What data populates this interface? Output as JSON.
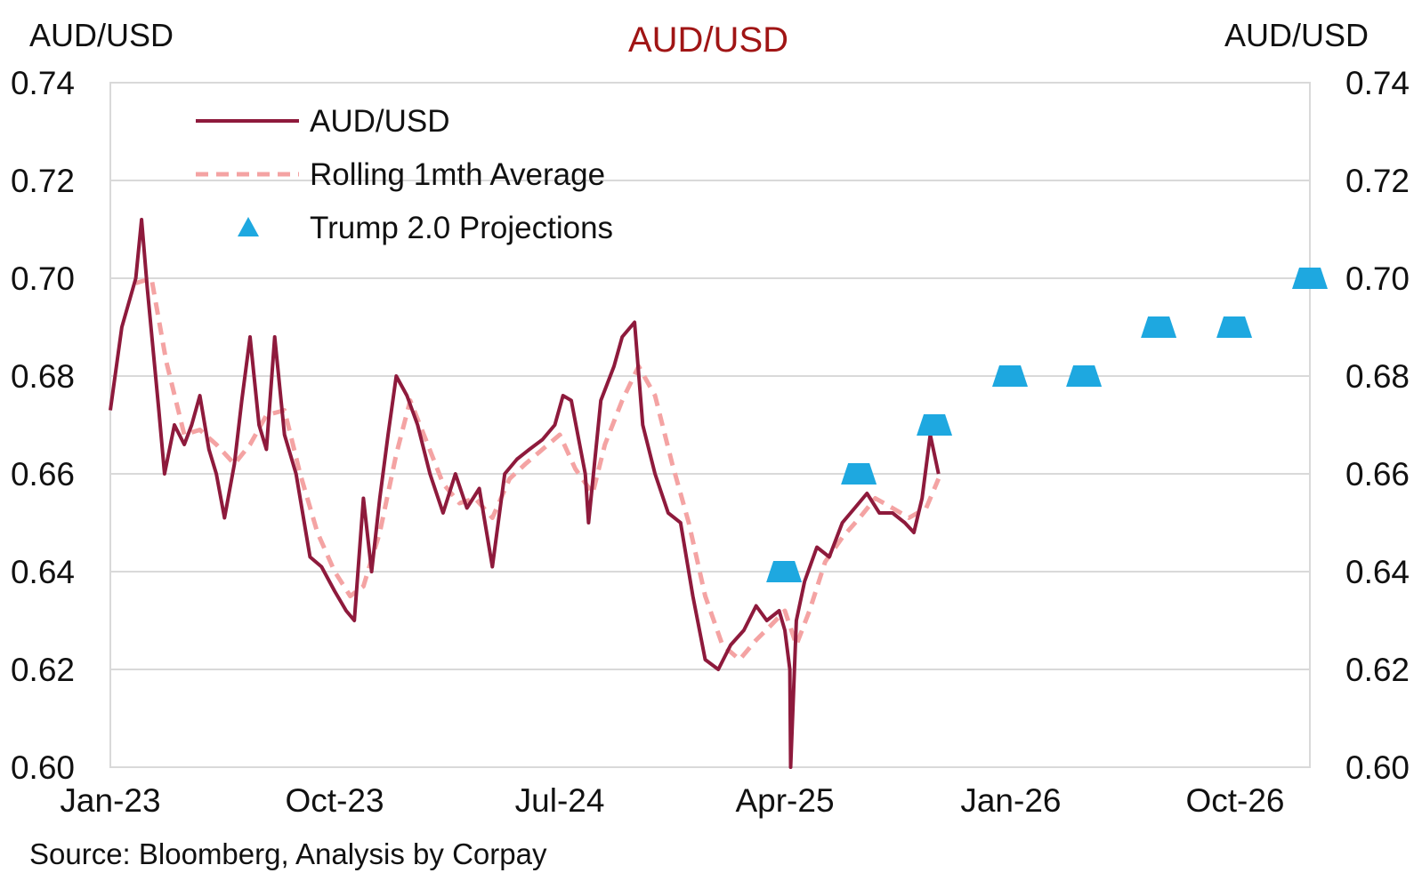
{
  "chart_data": {
    "type": "line",
    "title": "AUD/USD",
    "left_axis_label": "AUD/USD",
    "right_axis_label": "AUD/USD",
    "source": "Source: Bloomberg, Analysis by Corpay",
    "ylim": [
      0.6,
      0.74
    ],
    "y_ticks": [
      "0.74",
      "0.72",
      "0.70",
      "0.68",
      "0.66",
      "0.64",
      "0.62",
      "0.60"
    ],
    "x_ticks": [
      "Jan-23",
      "Oct-23",
      "Jul-24",
      "Apr-25",
      "Jan-26",
      "Oct-26"
    ],
    "x_range": [
      "2023-01",
      "2026-12"
    ],
    "grid": true,
    "legend_position": "top-left",
    "colors": {
      "audusd": "#8e1a3c",
      "rolling": "#f4a3a3",
      "projection": "#1ea8e0",
      "grid": "#d9d9d9",
      "title": "#a01515"
    },
    "series": [
      {
        "name": "AUD/USD",
        "style": "solid",
        "x": [
          "2023-01-01",
          "2023-01-15",
          "2023-02-01",
          "2023-02-08",
          "2023-02-15",
          "2023-03-01",
          "2023-03-08",
          "2023-03-20",
          "2023-04-01",
          "2023-04-10",
          "2023-04-20",
          "2023-05-01",
          "2023-05-10",
          "2023-05-20",
          "2023-06-01",
          "2023-06-10",
          "2023-06-20",
          "2023-07-01",
          "2023-07-10",
          "2023-07-20",
          "2023-08-01",
          "2023-08-15",
          "2023-09-01",
          "2023-09-15",
          "2023-10-01",
          "2023-10-15",
          "2023-10-25",
          "2023-11-05",
          "2023-11-15",
          "2023-11-25",
          "2023-12-05",
          "2023-12-15",
          "2023-12-28",
          "2024-01-10",
          "2024-01-25",
          "2024-02-10",
          "2024-02-25",
          "2024-03-10",
          "2024-03-25",
          "2024-04-10",
          "2024-04-25",
          "2024-05-10",
          "2024-05-25",
          "2024-06-10",
          "2024-06-25",
          "2024-07-05",
          "2024-07-15",
          "2024-08-01",
          "2024-08-05",
          "2024-08-20",
          "2024-09-05",
          "2024-09-15",
          "2024-09-30",
          "2024-10-10",
          "2024-10-25",
          "2024-11-10",
          "2024-11-25",
          "2024-12-10",
          "2024-12-25",
          "2025-01-10",
          "2025-01-25",
          "2025-02-10",
          "2025-02-25",
          "2025-03-10",
          "2025-03-25",
          "2025-04-01",
          "2025-04-07",
          "2025-04-08",
          "2025-04-15",
          "2025-04-25",
          "2025-05-10",
          "2025-05-25",
          "2025-06-10",
          "2025-06-25",
          "2025-07-10",
          "2025-07-25",
          "2025-08-10",
          "2025-08-25",
          "2025-09-05",
          "2025-09-15",
          "2025-09-25",
          "2025-10-05"
        ],
        "values": [
          0.673,
          0.69,
          0.7,
          0.712,
          0.698,
          0.673,
          0.66,
          0.67,
          0.666,
          0.67,
          0.676,
          0.665,
          0.66,
          0.651,
          0.662,
          0.675,
          0.688,
          0.67,
          0.665,
          0.688,
          0.668,
          0.66,
          0.643,
          0.641,
          0.636,
          0.632,
          0.63,
          0.655,
          0.64,
          0.655,
          0.668,
          0.68,
          0.676,
          0.67,
          0.66,
          0.652,
          0.66,
          0.653,
          0.657,
          0.641,
          0.66,
          0.663,
          0.665,
          0.667,
          0.67,
          0.676,
          0.675,
          0.66,
          0.65,
          0.675,
          0.682,
          0.688,
          0.691,
          0.67,
          0.66,
          0.652,
          0.65,
          0.635,
          0.622,
          0.62,
          0.625,
          0.628,
          0.633,
          0.63,
          0.632,
          0.628,
          0.62,
          0.6,
          0.63,
          0.638,
          0.645,
          0.643,
          0.65,
          0.653,
          0.656,
          0.652,
          0.652,
          0.65,
          0.648,
          0.655,
          0.668,
          0.66
        ]
      },
      {
        "name": "Rolling 1mth Average",
        "style": "dashed",
        "x": [
          "2023-02-01",
          "2023-02-20",
          "2023-03-10",
          "2023-04-01",
          "2023-04-20",
          "2023-05-10",
          "2023-06-01",
          "2023-06-20",
          "2023-07-10",
          "2023-08-01",
          "2023-08-20",
          "2023-09-10",
          "2023-10-01",
          "2023-10-20",
          "2023-11-05",
          "2023-11-25",
          "2023-12-15",
          "2024-01-01",
          "2024-01-20",
          "2024-02-10",
          "2024-03-01",
          "2024-03-20",
          "2024-04-10",
          "2024-05-01",
          "2024-05-20",
          "2024-06-10",
          "2024-07-01",
          "2024-07-20",
          "2024-08-10",
          "2024-08-25",
          "2024-09-15",
          "2024-10-05",
          "2024-10-25",
          "2024-11-15",
          "2024-12-05",
          "2024-12-25",
          "2025-01-15",
          "2025-02-05",
          "2025-02-25",
          "2025-03-15",
          "2025-04-01",
          "2025-04-15",
          "2025-05-01",
          "2025-05-20",
          "2025-06-10",
          "2025-07-01",
          "2025-07-20",
          "2025-08-10",
          "2025-08-30",
          "2025-09-20",
          "2025-10-05"
        ],
        "values": [
          0.699,
          0.7,
          0.683,
          0.668,
          0.669,
          0.666,
          0.662,
          0.666,
          0.672,
          0.673,
          0.66,
          0.648,
          0.64,
          0.635,
          0.637,
          0.648,
          0.664,
          0.675,
          0.667,
          0.658,
          0.654,
          0.655,
          0.651,
          0.659,
          0.662,
          0.665,
          0.668,
          0.661,
          0.656,
          0.666,
          0.675,
          0.682,
          0.676,
          0.662,
          0.65,
          0.635,
          0.625,
          0.622,
          0.626,
          0.629,
          0.632,
          0.625,
          0.632,
          0.642,
          0.647,
          0.651,
          0.655,
          0.653,
          0.651,
          0.653,
          0.659
        ]
      },
      {
        "name": "Trump 2.0 Projections",
        "style": "marker",
        "x": [
          "2025-03-31",
          "2025-06-30",
          "2025-09-30",
          "2025-12-31",
          "2026-03-31",
          "2026-06-30",
          "2026-09-30",
          "2026-12-31"
        ],
        "values": [
          0.64,
          0.66,
          0.67,
          0.68,
          0.68,
          0.69,
          0.69,
          0.7
        ]
      }
    ]
  }
}
